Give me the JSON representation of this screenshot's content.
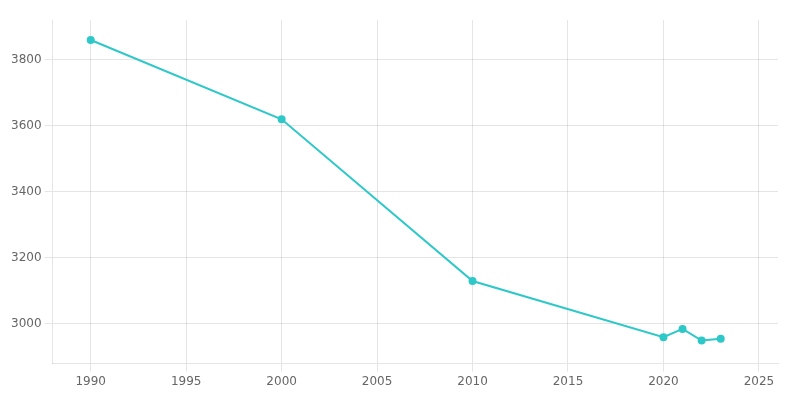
{
  "chart_data": {
    "type": "line",
    "x": [
      1990,
      2000,
      2010,
      2020,
      2021,
      2022,
      2023
    ],
    "values": [
      3860,
      3620,
      3130,
      2960,
      2985,
      2950,
      2955
    ],
    "color": "#2ec8c8",
    "marker": "circle",
    "xlim": [
      1988,
      2026
    ],
    "xticks": [
      1990,
      1995,
      2000,
      2005,
      2010,
      2015,
      2020,
      2025
    ],
    "ylim": [
      2880,
      3920
    ],
    "yticks": [
      3000,
      3200,
      3400,
      3600,
      3800
    ],
    "grid": true
  }
}
